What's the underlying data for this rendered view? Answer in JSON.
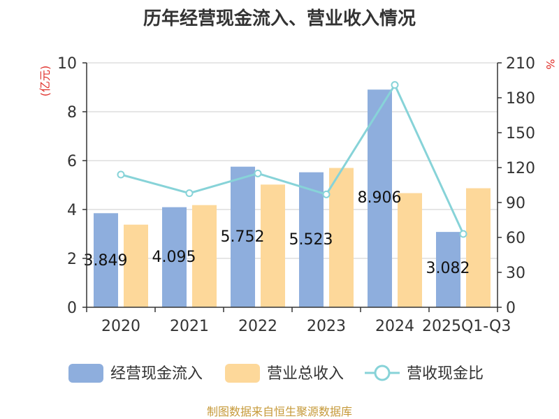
{
  "chart_data": {
    "type": "bar",
    "title": "历年经营现金流入、营业收入情况",
    "source": "制图数据来自恒生聚源数据库",
    "categories": [
      "2020",
      "2021",
      "2022",
      "2023",
      "2024",
      "2025Q1-Q3"
    ],
    "left_axis": {
      "unit": "(亿元)",
      "ylim": [
        0,
        10
      ],
      "ticks": [
        "0",
        "2",
        "4",
        "6",
        "8",
        "10"
      ]
    },
    "right_axis": {
      "unit": "%",
      "ylim": [
        0,
        210
      ],
      "ticks": [
        "0",
        "30",
        "60",
        "90",
        "120",
        "150",
        "180",
        "210"
      ]
    },
    "grid": true,
    "legend_position": "bottom",
    "series": [
      {
        "name": "经营现金流入",
        "type": "bar",
        "axis": "left",
        "color": "#8eaedd",
        "values": [
          3.849,
          4.095,
          5.752,
          5.523,
          8.906,
          3.082
        ],
        "labels": [
          "3.849",
          "4.095",
          "5.752",
          "5.523",
          "8.906",
          "3.082"
        ]
      },
      {
        "name": "营业总收入",
        "type": "bar",
        "axis": "left",
        "color": "#fdd89a",
        "values": [
          3.38,
          4.18,
          5.02,
          5.7,
          4.67,
          4.87
        ]
      },
      {
        "name": "营收现金比",
        "type": "line",
        "axis": "right",
        "color": "#87d3d8",
        "values": [
          114,
          98,
          115,
          97,
          191,
          63
        ]
      }
    ]
  }
}
